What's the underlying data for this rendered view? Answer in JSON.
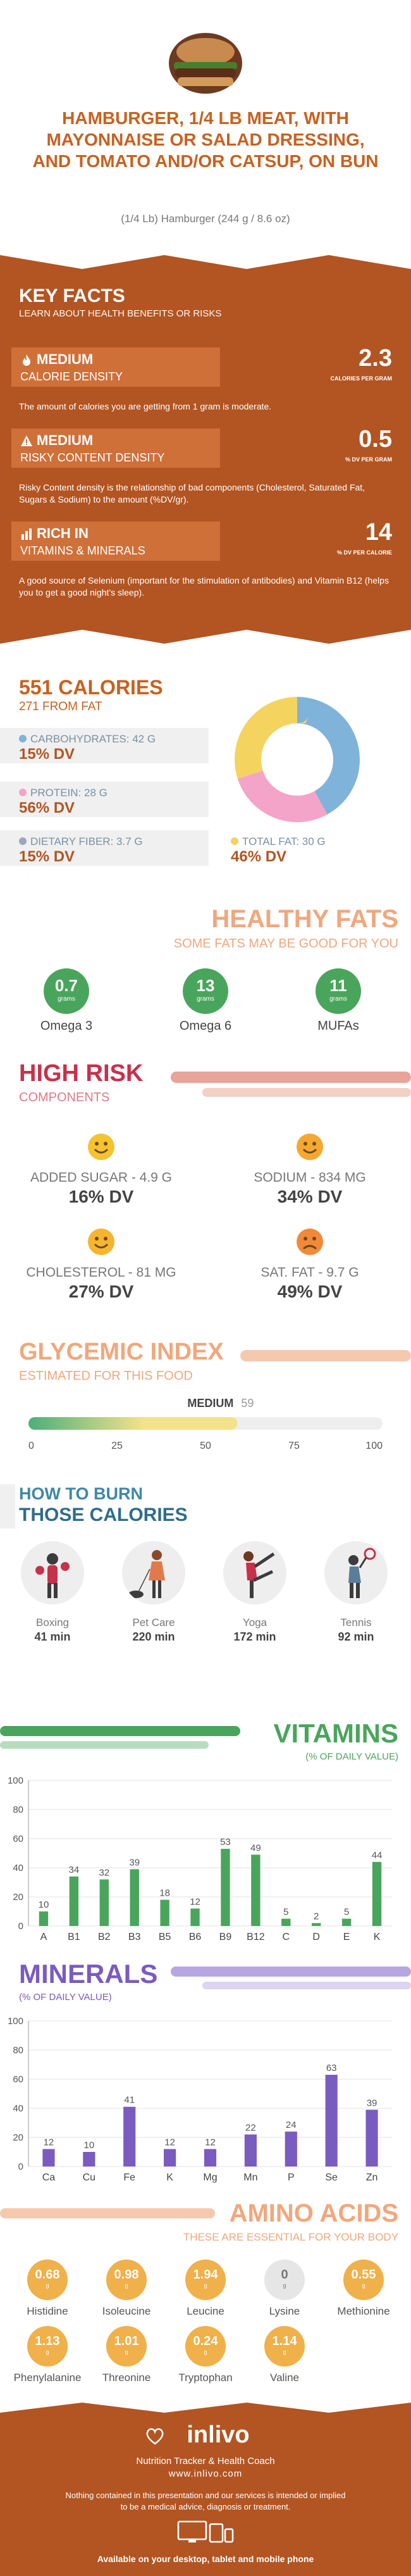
{
  "header": {
    "title": "HAMBURGER, 1/4 LB MEAT, WITH MAYONNAISE OR SALAD DRESSING, AND TOMATO AND/OR CATSUP, ON BUN",
    "subtitle": "(1/4 Lb) Hamburger (244 g / 8.6 oz)"
  },
  "key_facts": {
    "title": "KEY FACTS",
    "subtitle": "LEARN ABOUT HEALTH BENEFITS OR RISKS",
    "facts": [
      {
        "level": "MEDIUM",
        "name": "CALORIE DENSITY",
        "value": "2.3",
        "unit": "CALORIES PER GRAM",
        "icon": "flame-icon",
        "desc": "The amount of calories you are getting from 1 gram is moderate."
      },
      {
        "level": "MEDIUM",
        "name": "RISKY CONTENT DENSITY",
        "value": "0.5",
        "unit": "% DV PER GRAM",
        "icon": "warning-icon",
        "desc": "Risky Content density is the relationship of bad components (Cholesterol, Saturated Fat, Sugars & Sodium) to the amount (%DV/gr)."
      },
      {
        "level": "RICH  IN",
        "name": "VITAMINS & MINERALS",
        "value": "14",
        "unit": "% DV PER CALORIE",
        "icon": "bar-chart-icon",
        "desc": "A good source of Selenium (important for the stimulation of antibodies) and Vitamin B12 (helps you to get a good night's sleep)."
      }
    ]
  },
  "calories": {
    "title": "551 CALORIES",
    "from_fat": "271 FROM FAT",
    "items": [
      {
        "label": "CARBOHYDRATES: 42 g",
        "dv": "15% DV",
        "color": "#7fb3d9"
      },
      {
        "label": "PROTEIN: 28 g",
        "dv": "56% DV",
        "color": "#f4a4c8"
      },
      {
        "label": "DIETARY FIBER: 3.7 g",
        "dv": "15% DV",
        "color": "#9aa8b8"
      },
      {
        "label": "TOTAL FAT: 30 g",
        "dv": "46% DV",
        "color": "#f4d35e"
      }
    ],
    "donut": [
      {
        "name": "Carbohydrates",
        "value": 42,
        "color": "#7fb3d9"
      },
      {
        "name": "Protein",
        "value": 28,
        "color": "#f4a4c8"
      },
      {
        "name": "Total fat",
        "value": 30,
        "color": "#f4d35e"
      }
    ]
  },
  "healthy_fats": {
    "title": "HEALTHY FATS",
    "subtitle": "SOME FATS MAY BE GOOD FOR YOU",
    "unit": "grams",
    "items": [
      {
        "value": "0.7",
        "name": "Omega 3"
      },
      {
        "value": "13",
        "name": "Omega 6"
      },
      {
        "value": "11",
        "name": "MUFAs"
      }
    ]
  },
  "high_risk": {
    "title": "HIGH RISK",
    "subtitle": "COMPONENTS",
    "items": [
      {
        "label": "ADDED SUGAR - 4.9 g",
        "dv": "16% DV",
        "mood": "happy"
      },
      {
        "label": "SODIUM - 834 mg",
        "dv": "34% DV",
        "mood": "happy"
      },
      {
        "label": "CHOLESTEROL - 81 mg",
        "dv": "27% DV",
        "mood": "happy"
      },
      {
        "label": "SAT. FAT - 9.7 g",
        "dv": "49% DV",
        "mood": "sad"
      }
    ]
  },
  "glycemic": {
    "title": "GLYCEMIC INDEX",
    "subtitle": "ESTIMATED FOR THIS FOOD",
    "level": "MEDIUM",
    "value": 59,
    "value_label": "59",
    "ticks": [
      "0",
      "25",
      "50",
      "75",
      "100"
    ]
  },
  "burn": {
    "title1": "HOW TO BURN",
    "title2": "THOSE CALORIES",
    "items": [
      {
        "name": "Boxing",
        "minutes": "41 min",
        "icon": "boxing-icon"
      },
      {
        "name": "Pet Care",
        "minutes": "220 min",
        "icon": "dog-walking-icon"
      },
      {
        "name": "Yoga",
        "minutes": "172 min",
        "icon": "yoga-icon"
      },
      {
        "name": "Tennis",
        "minutes": "92 min",
        "icon": "tennis-icon"
      }
    ]
  },
  "vitamins": {
    "title": "VITAMINS",
    "subtitle": "(% OF DAILY VALUE)",
    "color": "#4aa55c",
    "chart_data": {
      "type": "bar",
      "categories": [
        "A",
        "B1",
        "B2",
        "B3",
        "B5",
        "B6",
        "B9",
        "B12",
        "C",
        "D",
        "E",
        "K"
      ],
      "values": [
        10,
        34,
        32,
        39,
        18,
        12,
        53,
        49,
        5,
        2,
        5,
        44
      ],
      "labels": [
        "10",
        "34",
        "32",
        "39",
        "18",
        "12",
        "53",
        "49",
        "5",
        "2",
        "5",
        "44"
      ],
      "yticks": [
        "0",
        "20",
        "40",
        "60",
        "80",
        "100"
      ],
      "ylim": [
        0,
        100
      ]
    }
  },
  "minerals": {
    "title": "MINERALS",
    "subtitle": "(% OF DAILY VALUE)",
    "color": "#7a5bc0",
    "chart_data": {
      "type": "bar",
      "categories": [
        "Ca",
        "Cu",
        "Fe",
        "K",
        "Mg",
        "Mn",
        "P",
        "Se",
        "Zn"
      ],
      "values": [
        12,
        10,
        41,
        12,
        12,
        22,
        24,
        63,
        39
      ],
      "labels": [
        "12",
        "10",
        "41",
        "12",
        "12",
        "22",
        "24",
        "63",
        "39"
      ],
      "yticks": [
        "0",
        "20",
        "40",
        "60",
        "80",
        "100"
      ],
      "ylim": [
        0,
        100
      ]
    }
  },
  "amino": {
    "title": "AMINO ACIDS",
    "subtitle": "THESE ARE ESSENTIAL FOR YOUR BODY",
    "unit": "g",
    "items": [
      {
        "value": "0.68",
        "name": "Histidine"
      },
      {
        "value": "0.98",
        "name": "Isoleucine"
      },
      {
        "value": "1.94",
        "name": "Leucine"
      },
      {
        "value": "0",
        "name": "Lysine"
      },
      {
        "value": "0.55",
        "name": "Methionine"
      },
      {
        "value": "1.13",
        "name": "Phenylalanine"
      },
      {
        "value": "1.01",
        "name": "Threonine"
      },
      {
        "value": "0.24",
        "name": "Tryptophan"
      },
      {
        "value": "1.14",
        "name": "Valine"
      }
    ]
  },
  "footer": {
    "brand": "inlivo",
    "tagline": "Nutrition Tracker & Health Coach",
    "site": "www.inlivo.com",
    "disclaimer1": "Nothing contained in this presentation and our services is intended or implied",
    "disclaimer2": "to be a medical advice, diagnosis or treatment.",
    "available": "Available on your desktop, tablet and mobile phone"
  }
}
